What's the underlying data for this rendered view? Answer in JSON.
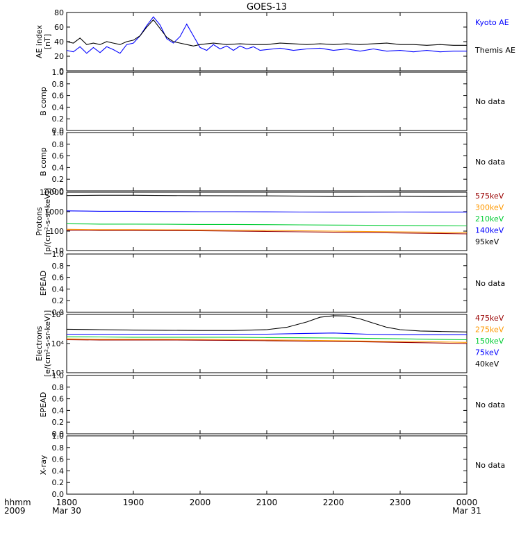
{
  "chart_data": {
    "type": "line",
    "title": "GOES-13",
    "x_label_left": [
      "hhmm",
      "2009"
    ],
    "x_ticks": [
      {
        "label": "1800",
        "sublabel": "Mar 30"
      },
      {
        "label": "1900",
        "sublabel": ""
      },
      {
        "label": "2000",
        "sublabel": ""
      },
      {
        "label": "2100",
        "sublabel": ""
      },
      {
        "label": "2200",
        "sublabel": ""
      },
      {
        "label": "2300",
        "sublabel": ""
      },
      {
        "label": "0000",
        "sublabel": "Mar 31"
      }
    ],
    "x_range_hours": [
      18,
      24
    ],
    "panels": [
      {
        "id": "ae",
        "ylabel": [
          "AE index",
          "[nT]"
        ],
        "scale": "linear",
        "ylim": [
          0,
          80
        ],
        "yticks": [
          "0",
          "20",
          "40",
          "60",
          "80"
        ],
        "legend": [
          {
            "text": "Kyoto AE",
            "color": "#0000ff"
          },
          {
            "text": "Themis AE",
            "color": "#000000"
          }
        ],
        "series": [
          {
            "name": "Kyoto AE",
            "color": "#0000ff",
            "x": [
              18.0,
              18.1,
              18.2,
              18.3,
              18.4,
              18.5,
              18.6,
              18.7,
              18.8,
              18.9,
              19.0,
              19.1,
              19.2,
              19.3,
              19.4,
              19.5,
              19.6,
              19.7,
              19.8,
              19.9,
              20.0,
              20.1,
              20.2,
              20.3,
              20.4,
              20.5,
              20.6,
              20.7,
              20.8,
              20.9,
              21.0,
              21.2,
              21.4,
              21.6,
              21.8,
              22.0,
              22.2,
              22.4,
              22.6,
              22.8,
              23.0,
              23.2,
              23.4,
              23.6,
              23.8,
              24.0
            ],
            "y": [
              28,
              26,
              33,
              24,
              32,
              25,
              33,
              29,
              24,
              36,
              38,
              48,
              62,
              74,
              63,
              44,
              38,
              47,
              64,
              48,
              32,
              28,
              36,
              30,
              34,
              28,
              34,
              30,
              33,
              28,
              29,
              31,
              28,
              30,
              31,
              28,
              30,
              27,
              30,
              27,
              28,
              26,
              28,
              26,
              27,
              27
            ]
          },
          {
            "name": "Themis AE",
            "color": "#000000",
            "x": [
              18.0,
              18.1,
              18.2,
              18.3,
              18.4,
              18.5,
              18.6,
              18.7,
              18.8,
              18.9,
              19.0,
              19.1,
              19.2,
              19.3,
              19.4,
              19.5,
              19.6,
              19.7,
              19.8,
              19.9,
              20.0,
              20.2,
              20.4,
              20.6,
              20.8,
              21.0,
              21.2,
              21.4,
              21.6,
              21.8,
              22.0,
              22.2,
              22.4,
              22.6,
              22.8,
              23.0,
              23.2,
              23.4,
              23.6,
              23.8,
              24.0
            ],
            "y": [
              40,
              38,
              45,
              36,
              38,
              36,
              40,
              38,
              36,
              40,
              42,
              48,
              60,
              70,
              58,
              46,
              40,
              38,
              36,
              34,
              36,
              38,
              36,
              37,
              36,
              36,
              38,
              37,
              36,
              37,
              36,
              37,
              36,
              37,
              38,
              36,
              36,
              35,
              36,
              35,
              35
            ]
          }
        ]
      },
      {
        "id": "bcomp1",
        "ylabel": [
          "B comp"
        ],
        "scale": "linear",
        "ylim": [
          0,
          1
        ],
        "yticks": [
          "0.0",
          "0.2",
          "0.4",
          "0.6",
          "0.8",
          "1.0"
        ],
        "legend": [
          {
            "text": "No data",
            "color": "#000000"
          }
        ],
        "series": []
      },
      {
        "id": "bcomp2",
        "ylabel": [
          "B comp"
        ],
        "scale": "linear",
        "ylim": [
          0,
          1
        ],
        "yticks": [
          "0.0",
          "0.2",
          "0.4",
          "0.6",
          "0.8",
          "1.0"
        ],
        "legend": [
          {
            "text": "No data",
            "color": "#000000"
          }
        ],
        "series": []
      },
      {
        "id": "protons",
        "ylabel": [
          "Protons",
          "[p/(cm²-s-sr-keV)]"
        ],
        "scale": "log",
        "ylim": [
          10,
          10000
        ],
        "yticks": [
          "10",
          "100",
          "1000",
          "10000"
        ],
        "legend": [
          {
            "text": "575keV",
            "color": "#990000"
          },
          {
            "text": "300keV",
            "color": "#ff9900"
          },
          {
            "text": "210keV",
            "color": "#00cc33"
          },
          {
            "text": "140keV",
            "color": "#0000ff"
          },
          {
            "text": "95keV",
            "color": "#000000"
          }
        ],
        "series": [
          {
            "name": "95keV",
            "color": "#000000",
            "x": [
              18.0,
              18.5,
              19.0,
              19.5,
              20.0,
              20.5,
              21.0,
              21.5,
              22.0,
              22.5,
              23.0,
              23.5,
              24.0
            ],
            "y": [
              6800,
              7000,
              7000,
              6800,
              6700,
              6600,
              6500,
              6300,
              6000,
              6100,
              6200,
              6000,
              6100
            ]
          },
          {
            "name": "140keV",
            "color": "#0000ff",
            "x": [
              18.0,
              18.5,
              19.0,
              19.5,
              20.0,
              20.5,
              21.0,
              21.5,
              22.0,
              22.5,
              23.0,
              23.5,
              24.0
            ],
            "y": [
              1100,
              1050,
              1050,
              1020,
              1000,
              1000,
              980,
              960,
              950,
              950,
              960,
              950,
              950
            ]
          },
          {
            "name": "210keV",
            "color": "#00cc33",
            "x": [
              18.0,
              18.5,
              19.0,
              19.5,
              20.0,
              20.5,
              21.0,
              21.5,
              22.0,
              22.5,
              23.0,
              23.5,
              24.0
            ],
            "y": [
              240,
              230,
              230,
              225,
              220,
              220,
              215,
              210,
              205,
              200,
              195,
              190,
              185
            ]
          },
          {
            "name": "300keV",
            "color": "#ff9900",
            "x": [
              18.0,
              18.5,
              19.0,
              19.5,
              20.0,
              20.5,
              21.0,
              21.5,
              22.0,
              22.5,
              23.0,
              23.5,
              24.0
            ],
            "y": [
              125,
              120,
              120,
              118,
              115,
              112,
              108,
              104,
              100,
              96,
              92,
              88,
              84
            ]
          },
          {
            "name": "575keV",
            "color": "#990000",
            "x": [
              18.0,
              18.5,
              19.0,
              19.5,
              20.0,
              20.5,
              21.0,
              21.5,
              22.0,
              22.5,
              23.0,
              23.5,
              24.0
            ],
            "y": [
              110,
              108,
              108,
              106,
              104,
              100,
              96,
              92,
              88,
              84,
              80,
              76,
              72
            ]
          }
        ]
      },
      {
        "id": "epead1",
        "ylabel": [
          "EPEAD"
        ],
        "scale": "linear",
        "ylim": [
          0,
          1
        ],
        "yticks": [
          "0.0",
          "0.2",
          "0.4",
          "0.6",
          "0.8",
          "1.0"
        ],
        "legend": [
          {
            "text": "No data",
            "color": "#000000"
          }
        ],
        "series": []
      },
      {
        "id": "electrons",
        "ylabel": [
          "Electrons",
          "[e/(cm²-s-sr-keV)]"
        ],
        "scale": "log",
        "ylim": [
          1000,
          100000
        ],
        "yticks": [
          "10³",
          "10⁴",
          "10⁵"
        ],
        "legend": [
          {
            "text": "475keV",
            "color": "#990000"
          },
          {
            "text": "275keV",
            "color": "#ff9900"
          },
          {
            "text": "150keV",
            "color": "#00cc33"
          },
          {
            "text": "75keV",
            "color": "#0000ff"
          },
          {
            "text": "40keV",
            "color": "#000000"
          }
        ],
        "series": [
          {
            "name": "40keV",
            "color": "#000000",
            "x": [
              18.0,
              18.5,
              19.0,
              19.5,
              20.0,
              20.5,
              21.0,
              21.3,
              21.6,
              21.8,
              22.0,
              22.2,
              22.4,
              22.6,
              22.8,
              23.0,
              23.3,
              23.6,
              24.0
            ],
            "y": [
              31000,
              30000,
              29000,
              28500,
              28000,
              28000,
              30000,
              36000,
              55000,
              80000,
              90000,
              88000,
              70000,
              50000,
              36000,
              30000,
              27000,
              26000,
              25000
            ]
          },
          {
            "name": "75keV",
            "color": "#0000ff",
            "x": [
              18.0,
              18.5,
              19.0,
              19.5,
              20.0,
              20.5,
              21.0,
              21.5,
              22.0,
              22.5,
              23.0,
              23.5,
              24.0
            ],
            "y": [
              21000,
              21000,
              21000,
              21000,
              21000,
              21000,
              21000,
              22000,
              23000,
              21000,
              20000,
              20000,
              20000
            ]
          },
          {
            "name": "150keV",
            "color": "#00cc33",
            "x": [
              18.0,
              18.5,
              19.0,
              19.5,
              20.0,
              20.5,
              21.0,
              21.5,
              22.0,
              22.5,
              23.0,
              23.5,
              24.0
            ],
            "y": [
              17000,
              16800,
              16500,
              16500,
              16500,
              16500,
              16000,
              15800,
              15500,
              15000,
              14500,
              14000,
              13500
            ]
          },
          {
            "name": "275keV",
            "color": "#ff9900",
            "x": [
              18.0,
              18.5,
              19.0,
              19.5,
              20.0,
              20.5,
              21.0,
              21.5,
              22.0,
              22.5,
              23.0,
              23.5,
              24.0
            ],
            "y": [
              14500,
              14000,
              14000,
              14000,
              13800,
              13600,
              13300,
              13000,
              12600,
              12200,
              11800,
              11500,
              11000
            ]
          },
          {
            "name": "475keV",
            "color": "#990000",
            "x": [
              18.0,
              18.5,
              19.0,
              19.5,
              20.0,
              20.5,
              21.0,
              21.5,
              22.0,
              22.5,
              23.0,
              23.5,
              24.0
            ],
            "y": [
              13500,
              13200,
              13200,
              13200,
              13000,
              12800,
              12500,
              12200,
              11800,
              11400,
              11000,
              10500,
              10000
            ]
          }
        ]
      },
      {
        "id": "epead2",
        "ylabel": [
          "EPEAD"
        ],
        "scale": "linear",
        "ylim": [
          0,
          1
        ],
        "yticks": [
          "0.0",
          "0.2",
          "0.4",
          "0.6",
          "0.8",
          "1.0"
        ],
        "legend": [
          {
            "text": "No data",
            "color": "#000000"
          }
        ],
        "series": []
      },
      {
        "id": "xray",
        "ylabel": [
          "X-ray"
        ],
        "scale": "linear",
        "ylim": [
          0,
          1
        ],
        "yticks": [
          "0.0",
          "0.2",
          "0.4",
          "0.6",
          "0.8",
          "1.0"
        ],
        "legend": [
          {
            "text": "No data",
            "color": "#000000"
          }
        ],
        "series": []
      }
    ]
  }
}
